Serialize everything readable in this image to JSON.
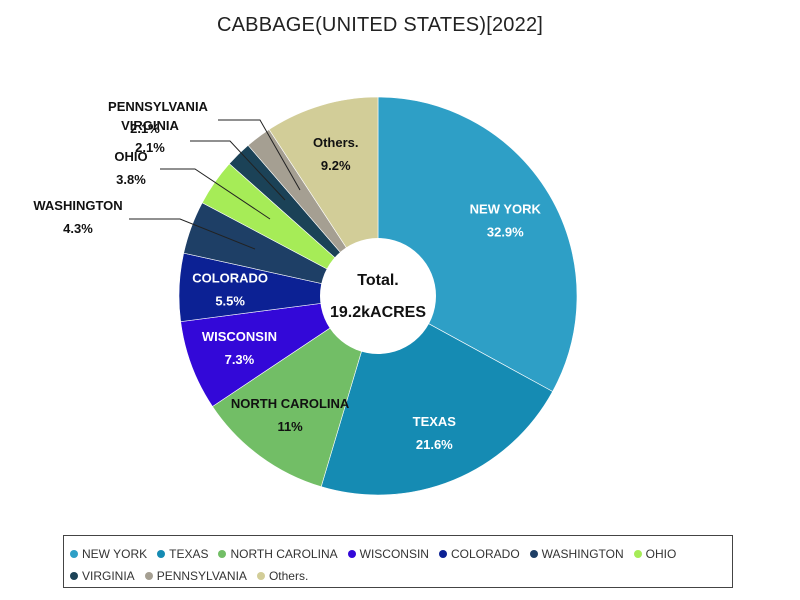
{
  "chart_data": {
    "type": "pie",
    "title": "CABBAGE(UNITED STATES)[2022]",
    "center_label": [
      "Total.",
      "19.2kACRES"
    ],
    "slices": [
      {
        "label": "NEW YORK",
        "pct_text": "32.9%",
        "value": 32.9,
        "color": "#2e9fc6",
        "text_color": "#ffffff",
        "label_mode": "inside"
      },
      {
        "label": "TEXAS",
        "pct_text": "21.6%",
        "value": 21.6,
        "color": "#158bb3",
        "text_color": "#ffffff",
        "label_mode": "inside"
      },
      {
        "label": "NORTH CAROLINA",
        "pct_text": "11%",
        "value": 11.0,
        "color": "#72be66",
        "text_color": "#111111",
        "label_mode": "inside"
      },
      {
        "label": "WISCONSIN",
        "pct_text": "7.3%",
        "value": 7.3,
        "color": "#3308d8",
        "text_color": "#ffffff",
        "label_mode": "inside"
      },
      {
        "label": "COLORADO",
        "pct_text": "5.5%",
        "value": 5.5,
        "color": "#0c2194",
        "text_color": "#ffffff",
        "label_mode": "inside"
      },
      {
        "label": "WASHINGTON",
        "pct_text": "4.3%",
        "value": 4.3,
        "color": "#1e3f66",
        "text_color": "#111111",
        "label_mode": "outside"
      },
      {
        "label": "OHIO",
        "pct_text": "3.8%",
        "value": 3.8,
        "color": "#a6ec57",
        "text_color": "#111111",
        "label_mode": "outside"
      },
      {
        "label": "VIRGINIA",
        "pct_text": "2.1%",
        "value": 2.1,
        "color": "#1b4257",
        "text_color": "#111111",
        "label_mode": "outside"
      },
      {
        "label": "PENNSYLVANIA",
        "pct_text": "2.1%",
        "value": 2.1,
        "color": "#a59f92",
        "text_color": "#111111",
        "label_mode": "outside"
      },
      {
        "label": "Others.",
        "pct_text": "9.2%",
        "value": 9.2,
        "color": "#d2cd98",
        "text_color": "#111111",
        "label_mode": "inside"
      }
    ],
    "legend_position": "bottom"
  }
}
